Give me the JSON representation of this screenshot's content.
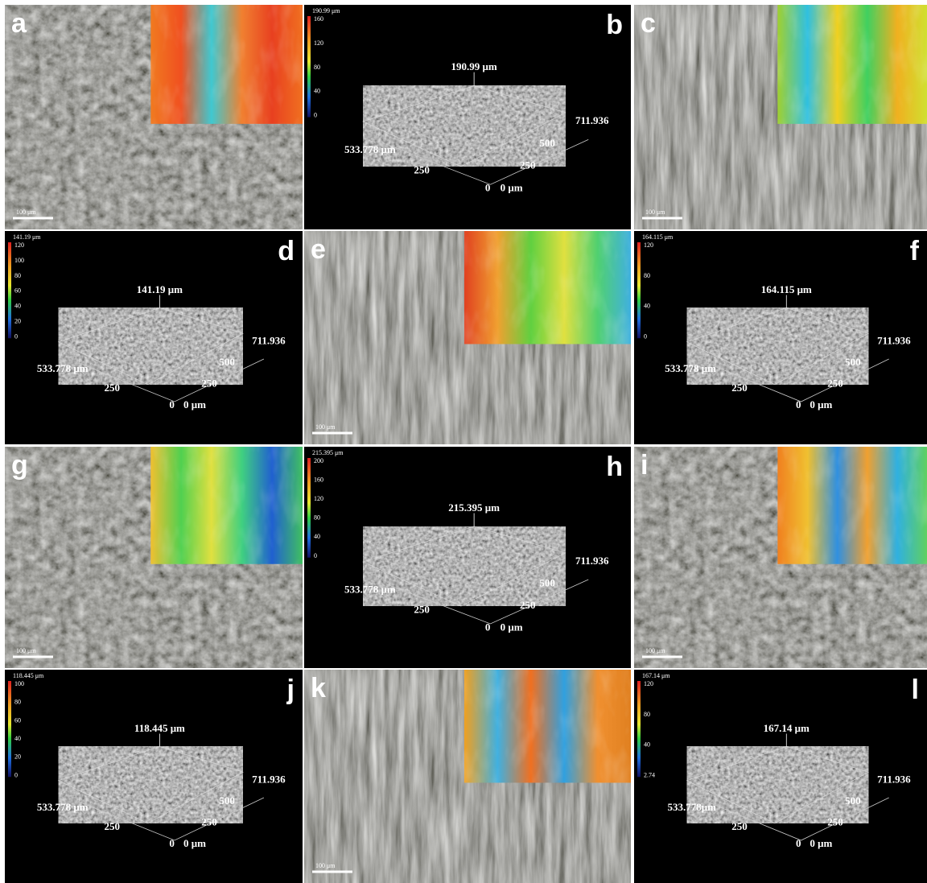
{
  "panels": [
    {
      "label": "a",
      "scale_bar": "100 μm"
    },
    {
      "label": "b",
      "colorbar_title": "190.99 μm",
      "colorbar_ticks": [
        160,
        120,
        80,
        40,
        0
      ],
      "peak": "190.99 μm",
      "axis_labels": [
        "711.936",
        "500",
        "250",
        "0 μm",
        "533.778 μm",
        "250",
        "0"
      ]
    },
    {
      "label": "c",
      "scale_bar": "100 μm"
    },
    {
      "label": "d",
      "colorbar_title": "141.19 μm",
      "colorbar_ticks": [
        120,
        100,
        80,
        60,
        40,
        20,
        0
      ],
      "peak": "141.19 μm",
      "axis_labels": [
        "711.936",
        "500",
        "250",
        "0 μm",
        "533.778 μm",
        "250",
        "0"
      ]
    },
    {
      "label": "e",
      "scale_bar": "100 μm"
    },
    {
      "label": "f",
      "colorbar_title": "164.115 μm",
      "colorbar_ticks": [
        120,
        80,
        40,
        0
      ],
      "peak": "164.115 μm",
      "axis_labels": [
        "711.936",
        "500",
        "250",
        "0 μm",
        "533.778 μm",
        "250",
        "0"
      ]
    },
    {
      "label": "g",
      "scale_bar": "100 μm"
    },
    {
      "label": "h",
      "colorbar_title": "215.395 μm",
      "colorbar_ticks": [
        200,
        160,
        120,
        80,
        40,
        0
      ],
      "peak": "215.395 μm",
      "axis_labels": [
        "711.936",
        "500",
        "250",
        "0 μm",
        "533.778 μm",
        "250",
        "0"
      ]
    },
    {
      "label": "i",
      "scale_bar": "100 μm"
    },
    {
      "label": "j",
      "colorbar_title": "118.445 μm",
      "colorbar_ticks": [
        100,
        80,
        60,
        40,
        20,
        0
      ],
      "peak": "118.445 μm",
      "axis_labels": [
        "711.936",
        "500",
        "250",
        "0 μm",
        "533.778 μm",
        "250",
        "0"
      ]
    },
    {
      "label": "k",
      "scale_bar": "100 μm"
    },
    {
      "label": "l",
      "colorbar_title": "167.14 μm",
      "colorbar_ticks": [
        120,
        80,
        40,
        2.74
      ],
      "peak": "167.14 μm",
      "axis_labels": [
        "711.936",
        "500",
        "250",
        "0 μm",
        "533.778μm",
        "250",
        "0"
      ]
    }
  ]
}
